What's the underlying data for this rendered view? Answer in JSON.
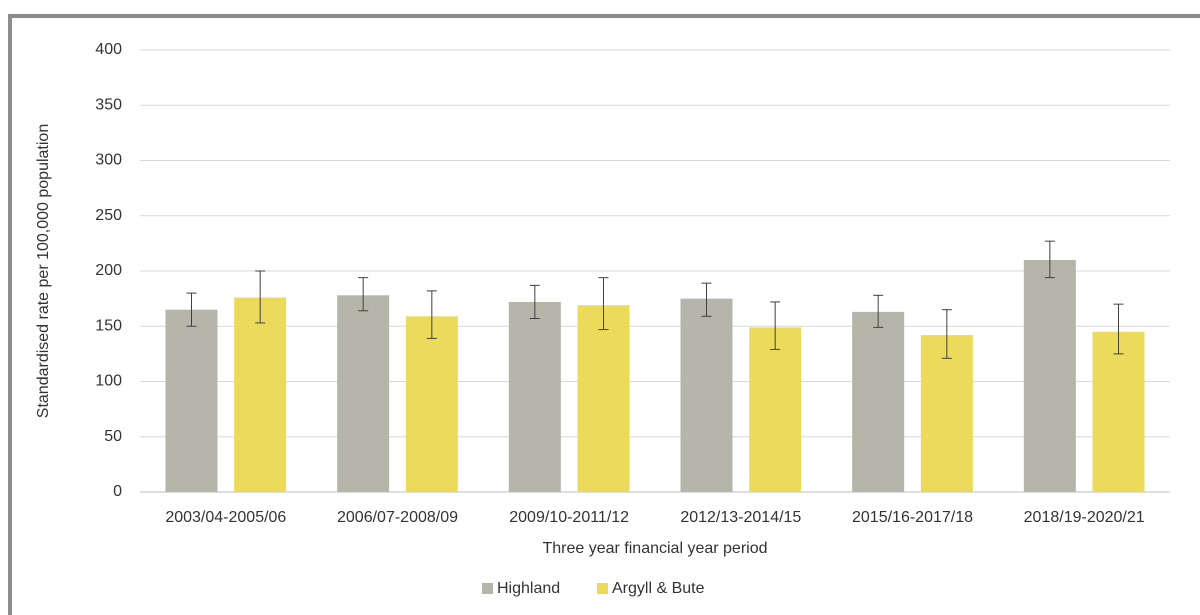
{
  "chart_data": {
    "type": "bar",
    "y_label": "Standardised rate per 100,000 population",
    "x_label": "Three  year financial year period",
    "categories": [
      "2003/04-2005/06",
      "2006/07-2008/09",
      "2009/10-2011/12",
      "2012/13-2014/15",
      "2015/16-2017/18",
      "2018/19-2020/21"
    ],
    "series": [
      {
        "name": "Highland",
        "color": "#b5b5aa",
        "values": [
          165,
          178,
          172,
          175,
          163,
          210
        ],
        "ci_lower": [
          150,
          164,
          157,
          159,
          149,
          194
        ],
        "ci_upper": [
          180,
          194,
          187,
          189,
          178,
          227
        ]
      },
      {
        "name": "Argyll & Bute",
        "color": "#ecdb5a",
        "values": [
          176,
          159,
          169,
          149,
          142,
          145
        ],
        "ci_lower": [
          153,
          139,
          147,
          129,
          121,
          125
        ],
        "ci_upper": [
          200,
          182,
          194,
          172,
          165,
          170
        ]
      }
    ],
    "ylim": [
      0,
      400
    ],
    "yticks": [
      0,
      50,
      100,
      150,
      200,
      250,
      300,
      350,
      400
    ],
    "grid": true,
    "legend": "bottom"
  }
}
